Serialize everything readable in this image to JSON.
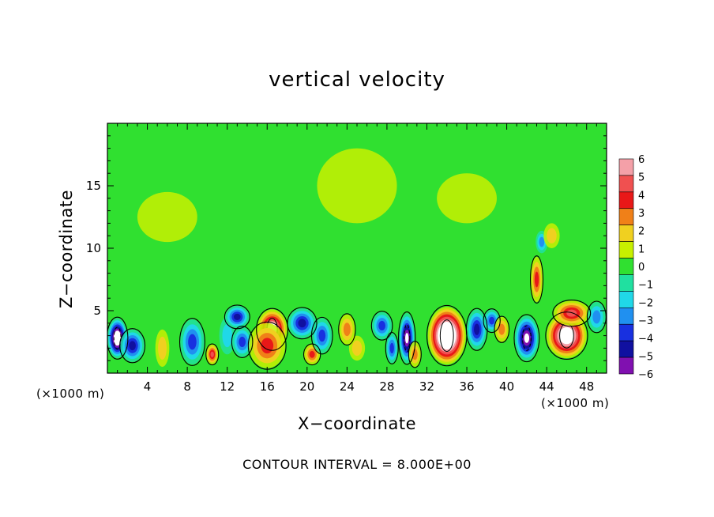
{
  "chart_data": {
    "type": "heatmap",
    "title": "vertical velocity",
    "xlabel": "X−coordinate",
    "ylabel": "Z−coordinate",
    "x_unit": "(×1000 m)",
    "y_unit": "(×1000 m)",
    "xlim": [
      0,
      50
    ],
    "ylim": [
      0,
      20
    ],
    "x_ticks": [
      4,
      8,
      12,
      16,
      20,
      24,
      28,
      32,
      36,
      40,
      44,
      48
    ],
    "y_ticks": [
      5,
      10,
      15
    ],
    "colorbar": {
      "levels": [
        6,
        5,
        4,
        3,
        2,
        1,
        0,
        -1,
        -2,
        -3,
        -4,
        -5,
        -6
      ],
      "labels": [
        "6",
        "5",
        "4",
        "3",
        "2",
        "1",
        "0",
        "−1",
        "−2",
        "−3",
        "−4",
        "−5",
        "−6"
      ],
      "colors": [
        "#f4a0a8",
        "#f05050",
        "#e81818",
        "#f08018",
        "#f0d020",
        "#c8f000",
        "#30e030",
        "#20e0a0",
        "#20d8e8",
        "#2090f0",
        "#1830e0",
        "#1010a0",
        "#8010b0"
      ]
    },
    "footnote": "CONTOUR INTERVAL = 8.000E+00",
    "background_value": 0,
    "features": [
      {
        "x": 1.0,
        "z": 2.8,
        "value": -9.0,
        "rx": 1.0,
        "rz": 1.6
      },
      {
        "x": 2.5,
        "z": 2.2,
        "value": -4.5,
        "rx": 1.2,
        "rz": 1.3
      },
      {
        "x": 5.5,
        "z": 2.0,
        "value": 1.5,
        "rx": 0.7,
        "rz": 1.5
      },
      {
        "x": 8.5,
        "z": 2.5,
        "value": -3.5,
        "rx": 1.2,
        "rz": 1.8
      },
      {
        "x": 10.5,
        "z": 1.5,
        "value": 5.0,
        "rx": 0.6,
        "rz": 0.8
      },
      {
        "x": 12.0,
        "z": 3.0,
        "value": -2.0,
        "rx": 0.8,
        "rz": 1.5
      },
      {
        "x": 13.0,
        "z": 4.5,
        "value": -5.0,
        "rx": 1.2,
        "rz": 0.9
      },
      {
        "x": 13.5,
        "z": 2.5,
        "value": -4.0,
        "rx": 1.0,
        "rz": 1.2
      },
      {
        "x": 16.5,
        "z": 3.5,
        "value": 8.0,
        "rx": 1.5,
        "rz": 1.6
      },
      {
        "x": 16.0,
        "z": 2.2,
        "value": 4.0,
        "rx": 1.8,
        "rz": 1.8
      },
      {
        "x": 19.5,
        "z": 4.0,
        "value": -4.5,
        "rx": 1.4,
        "rz": 1.2
      },
      {
        "x": 20.5,
        "z": 1.5,
        "value": 4.0,
        "rx": 0.8,
        "rz": 0.8
      },
      {
        "x": 21.5,
        "z": 3.0,
        "value": -3.5,
        "rx": 1.0,
        "rz": 1.4
      },
      {
        "x": 24.0,
        "z": 3.5,
        "value": 3.0,
        "rx": 0.8,
        "rz": 1.2
      },
      {
        "x": 25.0,
        "z": 2.0,
        "value": 2.0,
        "rx": 0.8,
        "rz": 1.0
      },
      {
        "x": 27.5,
        "z": 3.8,
        "value": -3.5,
        "rx": 1.0,
        "rz": 1.1
      },
      {
        "x": 28.5,
        "z": 2.0,
        "value": -4.0,
        "rx": 0.6,
        "rz": 1.2
      },
      {
        "x": 30.0,
        "z": 2.8,
        "value": -7.0,
        "rx": 0.8,
        "rz": 2.0
      },
      {
        "x": 30.8,
        "z": 1.5,
        "value": 3.0,
        "rx": 0.6,
        "rz": 1.0
      },
      {
        "x": 34.0,
        "z": 3.0,
        "value": 11.0,
        "rx": 1.9,
        "rz": 2.3
      },
      {
        "x": 37.0,
        "z": 3.5,
        "value": -4.5,
        "rx": 1.0,
        "rz": 1.6
      },
      {
        "x": 38.5,
        "z": 4.2,
        "value": -4.0,
        "rx": 0.8,
        "rz": 0.9
      },
      {
        "x": 39.5,
        "z": 3.5,
        "value": 3.0,
        "rx": 0.7,
        "rz": 1.0
      },
      {
        "x": 42.0,
        "z": 2.8,
        "value": -7.0,
        "rx": 1.2,
        "rz": 1.8
      },
      {
        "x": 43.0,
        "z": 7.5,
        "value": 4.0,
        "rx": 0.6,
        "rz": 1.8
      },
      {
        "x": 43.5,
        "z": 10.5,
        "value": -2.5,
        "rx": 0.6,
        "rz": 0.9
      },
      {
        "x": 44.5,
        "z": 11.0,
        "value": 2.0,
        "rx": 0.8,
        "rz": 1.0
      },
      {
        "x": 46.0,
        "z": 3.0,
        "value": 9.0,
        "rx": 2.0,
        "rz": 1.8
      },
      {
        "x": 46.5,
        "z": 4.8,
        "value": 5.0,
        "rx": 1.8,
        "rz": 1.0
      },
      {
        "x": 49.0,
        "z": 4.5,
        "value": -3.0,
        "rx": 0.9,
        "rz": 1.2
      },
      {
        "x": 6.0,
        "z": 12.5,
        "value": 0.6,
        "rx": 3.0,
        "rz": 2.0
      },
      {
        "x": 25.0,
        "z": 15.0,
        "value": 0.7,
        "rx": 4.0,
        "rz": 3.0
      },
      {
        "x": 36.0,
        "z": 14.0,
        "value": 0.5,
        "rx": 3.0,
        "rz": 2.0
      }
    ]
  }
}
